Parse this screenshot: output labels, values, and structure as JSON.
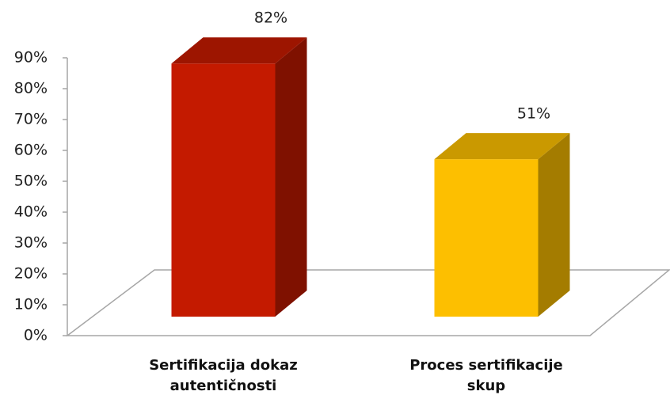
{
  "chart_data": {
    "type": "bar3d",
    "categories": [
      "Sertifikacija dokaz autentičnosti",
      "Proces sertifikacije skup"
    ],
    "values": [
      82,
      51
    ],
    "value_labels": [
      "82%",
      "51%"
    ],
    "colors": [
      "#c41a00",
      "#fdbf00"
    ],
    "ylim": [
      0,
      90
    ],
    "yticks": [
      {
        "value": 0,
        "label": "0%"
      },
      {
        "value": 10,
        "label": "10%"
      },
      {
        "value": 20,
        "label": "20%"
      },
      {
        "value": 30,
        "label": "30%"
      },
      {
        "value": 40,
        "label": "40%"
      },
      {
        "value": 50,
        "label": "50%"
      },
      {
        "value": 60,
        "label": "60%"
      },
      {
        "value": 70,
        "label": "70%"
      },
      {
        "value": 80,
        "label": "80%"
      },
      {
        "value": 90,
        "label": "90%"
      }
    ]
  }
}
